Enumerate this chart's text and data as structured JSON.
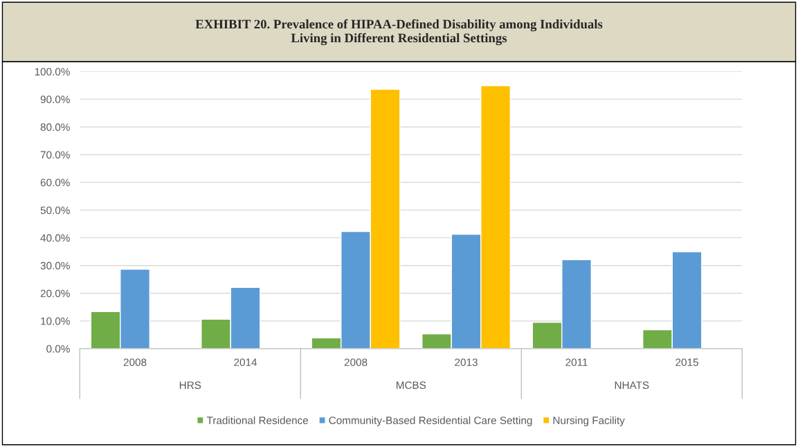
{
  "chart_data": {
    "type": "bar",
    "title": "EXHIBIT 20. Prevalence of HIPAA-Defined Disability among Individuals\nLiving in Different Residential Settings",
    "categories": [
      "2008",
      "2014",
      "2008",
      "2013",
      "2011",
      "2015"
    ],
    "series": [
      {
        "name": "Traditional Residence",
        "color": "#70ad47",
        "values": [
          13.4,
          10.6,
          3.9,
          5.3,
          9.5,
          6.8
        ]
      },
      {
        "name": "Community-Based Residential Care Setting",
        "color": "#5b9bd5",
        "values": [
          28.7,
          22.1,
          42.3,
          41.3,
          32.1,
          35.0
        ]
      },
      {
        "name": "Nursing Facility",
        "color": "#ffc000",
        "values": [
          null,
          null,
          93.6,
          94.9,
          null,
          null
        ]
      }
    ],
    "annotations": [
      "HRS",
      "MCBS",
      "NHATS"
    ],
    "ylim": [
      0,
      100
    ],
    "yticks": [
      {
        "value": 0,
        "label": "0.0%"
      },
      {
        "value": 10,
        "label": "10.0%"
      },
      {
        "value": 20,
        "label": "20.0%"
      },
      {
        "value": 30,
        "label": "30.0%"
      },
      {
        "value": 40,
        "label": "40.0%"
      },
      {
        "value": 50,
        "label": "50.0%"
      },
      {
        "value": 60,
        "label": "60.0%"
      },
      {
        "value": 70,
        "label": "70.0%"
      },
      {
        "value": 80,
        "label": "80.0%"
      },
      {
        "value": 90,
        "label": "90.0%"
      },
      {
        "value": 100,
        "label": "100.0%"
      }
    ],
    "grid": "y",
    "legend": "bottom"
  }
}
